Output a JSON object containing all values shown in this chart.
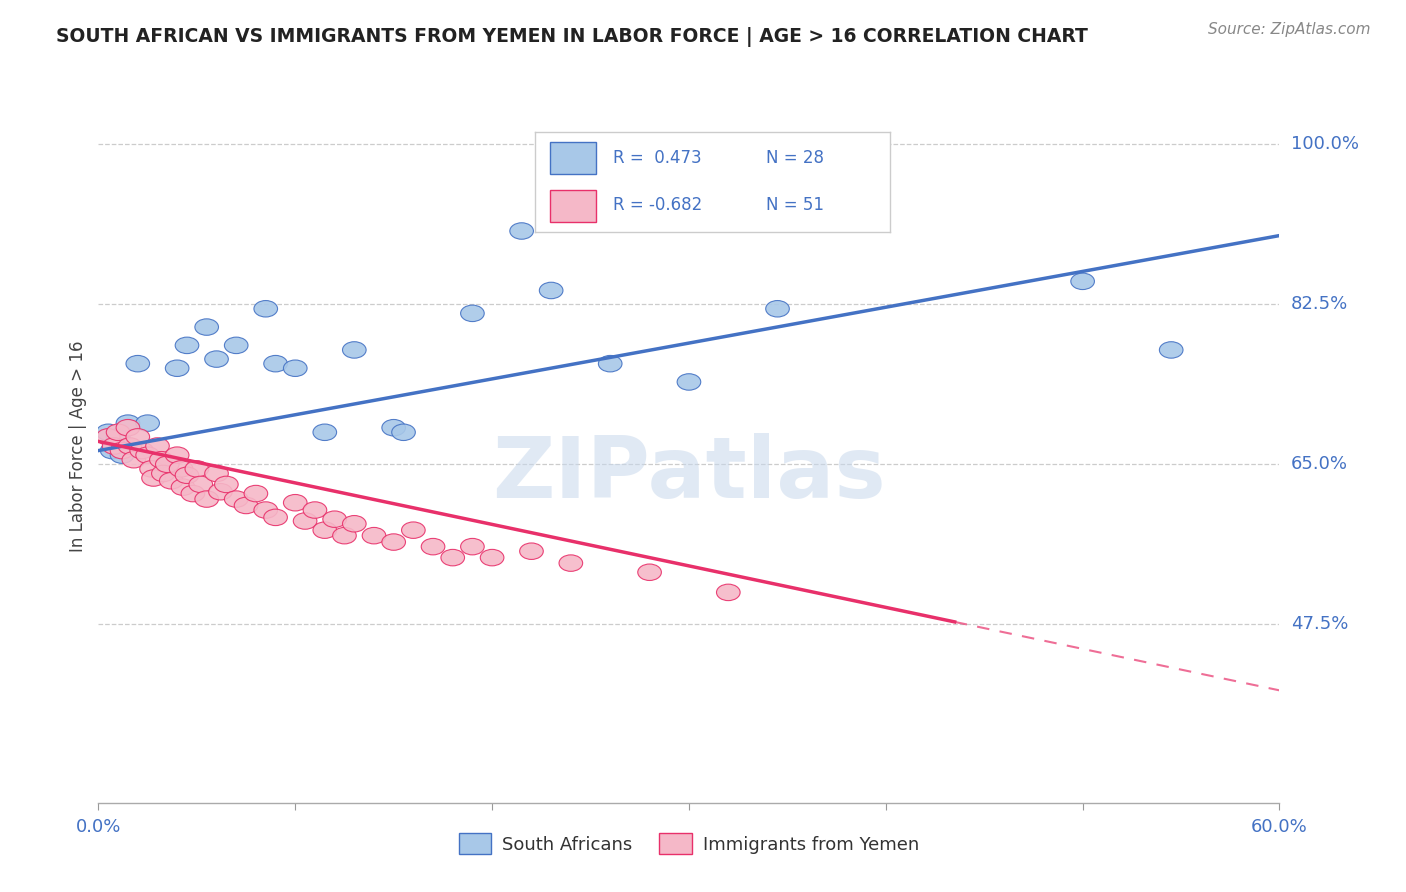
{
  "title": "SOUTH AFRICAN VS IMMIGRANTS FROM YEMEN IN LABOR FORCE | AGE > 16 CORRELATION CHART",
  "source": "Source: ZipAtlas.com",
  "ylabel": "In Labor Force | Age > 16",
  "xlim": [
    0.0,
    0.6
  ],
  "ylim": [
    0.28,
    1.06
  ],
  "ytick_vals": [
    0.475,
    0.65,
    0.825,
    1.0
  ],
  "ytick_labels": [
    "47.5%",
    "65.0%",
    "82.5%",
    "100.0%"
  ],
  "xticks": [
    0.0,
    0.1,
    0.2,
    0.3,
    0.4,
    0.5,
    0.6
  ],
  "xtick_labels": [
    "0.0%",
    "",
    "",
    "",
    "",
    "",
    "60.0%"
  ],
  "background_color": "#ffffff",
  "watermark": "ZIPatlas",
  "blue_R": 0.473,
  "blue_N": 28,
  "pink_R": -0.682,
  "pink_N": 51,
  "blue_color": "#a8c8e8",
  "pink_color": "#f5b8c8",
  "trendline_blue": "#4472c4",
  "trendline_pink": "#e8306a",
  "legend_blue_fill": "#a8c8e8",
  "legend_pink_fill": "#f5b8c8",
  "blue_points": [
    [
      0.005,
      0.685
    ],
    [
      0.007,
      0.665
    ],
    [
      0.01,
      0.68
    ],
    [
      0.012,
      0.66
    ],
    [
      0.015,
      0.695
    ],
    [
      0.02,
      0.76
    ],
    [
      0.025,
      0.695
    ],
    [
      0.04,
      0.755
    ],
    [
      0.045,
      0.78
    ],
    [
      0.055,
      0.8
    ],
    [
      0.06,
      0.765
    ],
    [
      0.07,
      0.78
    ],
    [
      0.085,
      0.82
    ],
    [
      0.09,
      0.76
    ],
    [
      0.1,
      0.755
    ],
    [
      0.115,
      0.685
    ],
    [
      0.13,
      0.775
    ],
    [
      0.15,
      0.69
    ],
    [
      0.155,
      0.685
    ],
    [
      0.19,
      0.815
    ],
    [
      0.215,
      0.905
    ],
    [
      0.23,
      0.84
    ],
    [
      0.245,
      0.96
    ],
    [
      0.26,
      0.76
    ],
    [
      0.3,
      0.74
    ],
    [
      0.345,
      0.82
    ],
    [
      0.5,
      0.85
    ],
    [
      0.545,
      0.775
    ]
  ],
  "pink_points": [
    [
      0.005,
      0.68
    ],
    [
      0.008,
      0.67
    ],
    [
      0.01,
      0.685
    ],
    [
      0.012,
      0.665
    ],
    [
      0.015,
      0.69
    ],
    [
      0.016,
      0.67
    ],
    [
      0.018,
      0.655
    ],
    [
      0.02,
      0.68
    ],
    [
      0.022,
      0.665
    ],
    [
      0.025,
      0.66
    ],
    [
      0.027,
      0.645
    ],
    [
      0.028,
      0.635
    ],
    [
      0.03,
      0.67
    ],
    [
      0.032,
      0.655
    ],
    [
      0.033,
      0.64
    ],
    [
      0.035,
      0.65
    ],
    [
      0.037,
      0.632
    ],
    [
      0.04,
      0.66
    ],
    [
      0.042,
      0.645
    ],
    [
      0.043,
      0.625
    ],
    [
      0.045,
      0.638
    ],
    [
      0.048,
      0.618
    ],
    [
      0.05,
      0.645
    ],
    [
      0.052,
      0.628
    ],
    [
      0.055,
      0.612
    ],
    [
      0.06,
      0.64
    ],
    [
      0.062,
      0.62
    ],
    [
      0.065,
      0.628
    ],
    [
      0.07,
      0.612
    ],
    [
      0.075,
      0.605
    ],
    [
      0.08,
      0.618
    ],
    [
      0.085,
      0.6
    ],
    [
      0.09,
      0.592
    ],
    [
      0.1,
      0.608
    ],
    [
      0.105,
      0.588
    ],
    [
      0.11,
      0.6
    ],
    [
      0.115,
      0.578
    ],
    [
      0.12,
      0.59
    ],
    [
      0.125,
      0.572
    ],
    [
      0.13,
      0.585
    ],
    [
      0.14,
      0.572
    ],
    [
      0.15,
      0.565
    ],
    [
      0.16,
      0.578
    ],
    [
      0.17,
      0.56
    ],
    [
      0.18,
      0.548
    ],
    [
      0.19,
      0.56
    ],
    [
      0.2,
      0.548
    ],
    [
      0.22,
      0.555
    ],
    [
      0.24,
      0.542
    ],
    [
      0.28,
      0.532
    ],
    [
      0.32,
      0.51
    ]
  ]
}
